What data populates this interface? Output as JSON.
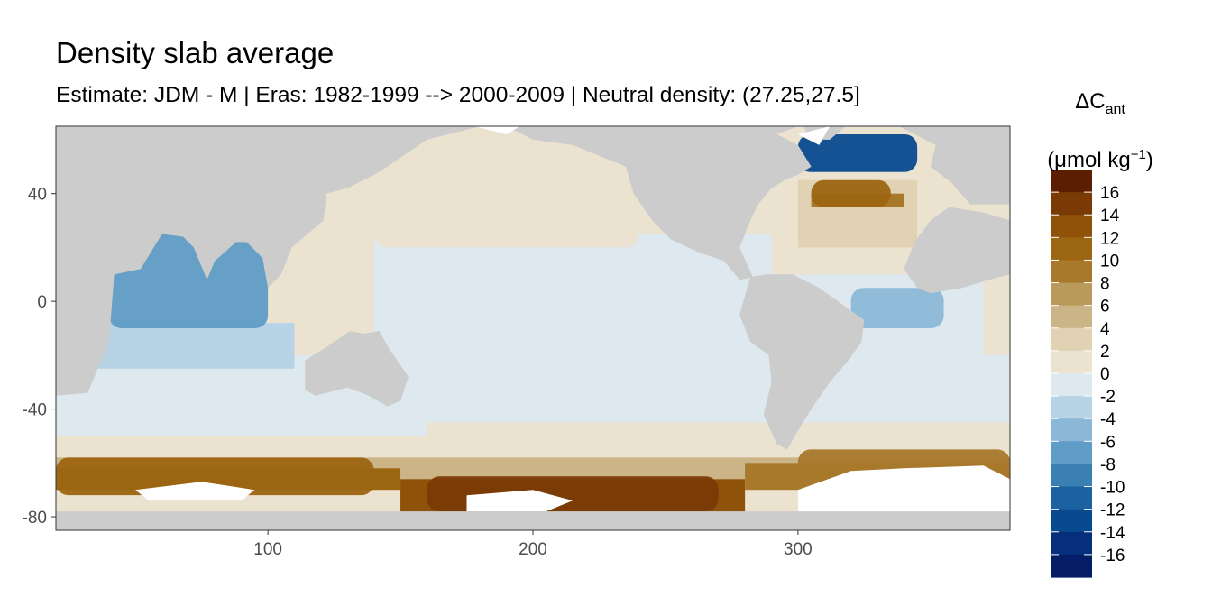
{
  "title": "Density slab average",
  "subtitle": "Estimate: JDM - M | Eras: 1982-1999 --> 2000-2009 | Neutral density: (27.25,27.5]",
  "colors": {
    "land": "#cccccc",
    "no_data": "#ffffff",
    "neutral_pos": "#ebe2d0",
    "neutral_neg": "#dde8ef"
  },
  "chart_data": {
    "type": "heatmap",
    "title": "Density slab average",
    "subtitle": "Estimate: JDM - M | Eras: 1982-1999 --> 2000-2009 | Neutral density: (27.25,27.5]",
    "xlim": [
      20,
      380
    ],
    "ylim": [
      -85,
      65
    ],
    "x_ticks": [
      100,
      200,
      300
    ],
    "y_ticks": [
      40,
      0,
      -40,
      -80
    ],
    "grid": false,
    "legend": {
      "position": "right",
      "title_main": "ΔC",
      "title_sub": "ant",
      "unit_main": "(μmol kg",
      "unit_sup": "−1",
      "unit_end": ")",
      "labels": [
        "16",
        "14",
        "12",
        "10",
        "8",
        "6",
        "4",
        "2",
        "0",
        "-2",
        "-4",
        "-6",
        "-8",
        "-10",
        "-12",
        "-14",
        "-16"
      ],
      "colors": [
        "#5c1e00",
        "#7a3a05",
        "#8f5209",
        "#9c6512",
        "#a8792a",
        "#b99a5a",
        "#cbb486",
        "#e1d2b4",
        "#ebe2d0",
        "#dde8ef",
        "#b9d3e6",
        "#8bb8d7",
        "#5f9cc6",
        "#3a80b3",
        "#1c62a0",
        "#084a8f",
        "#052f7a",
        "#041d66"
      ]
    },
    "regions": [
      {
        "name": "north-atlantic-deep-negative",
        "lon": [
          300,
          345
        ],
        "lat": [
          48,
          62
        ],
        "value": -14
      },
      {
        "name": "arabian-sea-bay-of-bengal",
        "lon": [
          40,
          100
        ],
        "lat": [
          -10,
          25
        ],
        "value": -8
      },
      {
        "name": "eastern-tropical-atlantic",
        "lon": [
          320,
          355
        ],
        "lat": [
          -10,
          5
        ],
        "value": -6
      },
      {
        "name": "equatorial-pacific",
        "lon": [
          150,
          280
        ],
        "lat": [
          -20,
          20
        ],
        "value": -1
      },
      {
        "name": "north-pacific-subtropical",
        "lon": [
          140,
          240
        ],
        "lat": [
          20,
          55
        ],
        "value": 1
      },
      {
        "name": "north-atlantic-subpolar-front",
        "lon": [
          305,
          335
        ],
        "lat": [
          35,
          45
        ],
        "value": 10
      },
      {
        "name": "southern-ocean-south-pacific",
        "lon": [
          160,
          270
        ],
        "lat": [
          -78,
          -65
        ],
        "value": 14
      },
      {
        "name": "southern-ocean-indian",
        "lon": [
          20,
          140
        ],
        "lat": [
          -72,
          -58
        ],
        "value": 10
      },
      {
        "name": "southern-ocean-atlantic",
        "lon": [
          300,
          380
        ],
        "lat": [
          -68,
          -55
        ],
        "value": 8
      }
    ]
  }
}
